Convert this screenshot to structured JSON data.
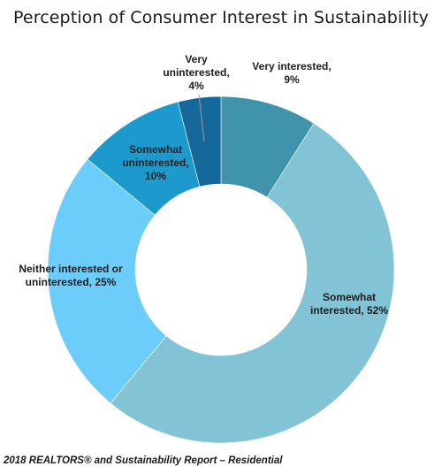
{
  "chart_data": {
    "type": "pie",
    "title": "Perception of Consumer Interest in Sustainability",
    "donut": true,
    "slices": [
      {
        "label": "Very interested,",
        "value": 9,
        "display": "9%",
        "color": "#3f94ab"
      },
      {
        "label": "Somewhat interested,",
        "value": 52,
        "display": "52%",
        "color": "#82c4d6"
      },
      {
        "label": "Neither interested or uninterested,",
        "value": 25,
        "display": "25%",
        "color": "#6ccdfb"
      },
      {
        "label": "Somewhat uninterested,",
        "value": 10,
        "display": "10%",
        "color": "#1d9acd"
      },
      {
        "label": "Very uninterested,",
        "value": 4,
        "display": "4%",
        "color": "#17689a"
      }
    ]
  },
  "footer": "2018 REALTORS® and Sustainability Report – Residential"
}
